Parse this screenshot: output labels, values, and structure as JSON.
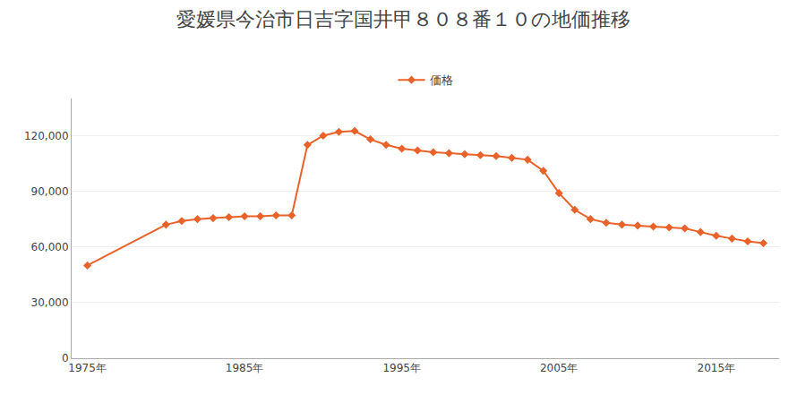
{
  "chart_data": {
    "type": "line",
    "title": "愛媛県今治市日吉字国井甲８０８番１０の地価推移",
    "x": [
      1975,
      1980,
      1981,
      1982,
      1983,
      1984,
      1985,
      1986,
      1987,
      1988,
      1989,
      1990,
      1991,
      1992,
      1993,
      1994,
      1995,
      1996,
      1997,
      1998,
      1999,
      2000,
      2001,
      2002,
      2003,
      2004,
      2005,
      2006,
      2007,
      2008,
      2009,
      2010,
      2011,
      2012,
      2013,
      2014,
      2015,
      2016,
      2017,
      2018
    ],
    "series": [
      {
        "name": "価格",
        "color": "#e8622a",
        "marker": "diamond",
        "line_style": "solid",
        "values": [
          50000,
          72000,
          74000,
          75000,
          75500,
          76000,
          76500,
          76500,
          77000,
          77000,
          115000,
          120000,
          122000,
          122500,
          118000,
          115000,
          113000,
          112000,
          111000,
          110500,
          110000,
          109500,
          109000,
          108000,
          107000,
          101000,
          89000,
          80000,
          75000,
          73000,
          72000,
          71500,
          71000,
          70500,
          70000,
          68000,
          66000,
          64500,
          63000,
          62000
        ]
      }
    ],
    "xlim": [
      1974,
      2019
    ],
    "xticks": [
      {
        "value": 1975,
        "label": "1975年"
      },
      {
        "value": 1985,
        "label": "1985年"
      },
      {
        "value": 1995,
        "label": "1995年"
      },
      {
        "value": 2005,
        "label": "2005年"
      },
      {
        "value": 2015,
        "label": "2015年"
      }
    ],
    "ylim": [
      0,
      140000
    ],
    "yticks": [
      0,
      {
        "value": 30000,
        "label": "30,000"
      },
      {
        "value": 60000,
        "label": "60,000"
      },
      {
        "value": 90000,
        "label": "90,000"
      },
      {
        "value": 120000,
        "label": "120,000"
      }
    ],
    "grid": true,
    "legend": "upper center"
  }
}
